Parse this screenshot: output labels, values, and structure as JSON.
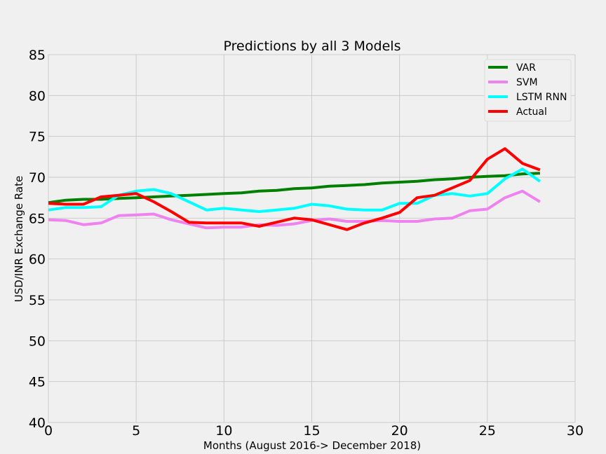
{
  "chart_data": {
    "type": "line",
    "title": "Predictions by all 3 Models",
    "xlabel": "Months (August 2016-> December 2018)",
    "ylabel": "USD/INR Exchange Rate",
    "xlim": [
      0,
      30
    ],
    "ylim": [
      40,
      85
    ],
    "x_ticks": [
      0,
      5,
      10,
      15,
      20,
      25,
      30
    ],
    "y_ticks": [
      40,
      45,
      50,
      55,
      60,
      65,
      70,
      75,
      80,
      85
    ],
    "grid": true,
    "legend_position": "top-right",
    "x": [
      0,
      1,
      2,
      3,
      4,
      5,
      6,
      7,
      8,
      9,
      10,
      11,
      12,
      13,
      14,
      15,
      16,
      17,
      18,
      19,
      20,
      21,
      22,
      23,
      24,
      25,
      26,
      27,
      28
    ],
    "series": [
      {
        "name": "VAR",
        "color": "#008000",
        "values": [
          66.9,
          67.2,
          67.3,
          67.3,
          67.4,
          67.5,
          67.6,
          67.7,
          67.8,
          67.9,
          68.0,
          68.1,
          68.3,
          68.4,
          68.6,
          68.7,
          68.9,
          69.0,
          69.1,
          69.3,
          69.4,
          69.5,
          69.7,
          69.8,
          70.0,
          70.1,
          70.2,
          70.4,
          70.5
        ]
      },
      {
        "name": "SVM",
        "color": "#ee82ee",
        "values": [
          64.8,
          64.7,
          64.2,
          64.4,
          65.3,
          65.4,
          65.5,
          64.8,
          64.3,
          63.8,
          63.9,
          63.9,
          64.2,
          64.1,
          64.3,
          64.7,
          64.9,
          64.6,
          64.6,
          64.7,
          64.6,
          64.6,
          64.9,
          65.0,
          65.9,
          66.1,
          67.5,
          68.3,
          67.0
        ]
      },
      {
        "name": "LSTM RNN",
        "color": "#00ffff",
        "values": [
          66.0,
          66.3,
          66.3,
          66.4,
          67.8,
          68.3,
          68.5,
          68.0,
          67.0,
          66.0,
          66.2,
          66.0,
          65.8,
          66.0,
          66.2,
          66.7,
          66.5,
          66.1,
          66.0,
          66.0,
          66.8,
          66.8,
          67.8,
          68.0,
          67.7,
          68.0,
          69.8,
          71.0,
          69.5
        ]
      },
      {
        "name": "Actual",
        "color": "#ff0000",
        "values": [
          66.8,
          66.7,
          66.7,
          67.6,
          67.8,
          68.0,
          67.0,
          65.8,
          64.5,
          64.4,
          64.4,
          64.4,
          64.0,
          64.5,
          65.0,
          64.8,
          64.2,
          63.6,
          64.4,
          65.0,
          65.7,
          67.5,
          67.8,
          68.7,
          69.6,
          72.2,
          73.5,
          71.7,
          70.9
        ]
      }
    ]
  }
}
